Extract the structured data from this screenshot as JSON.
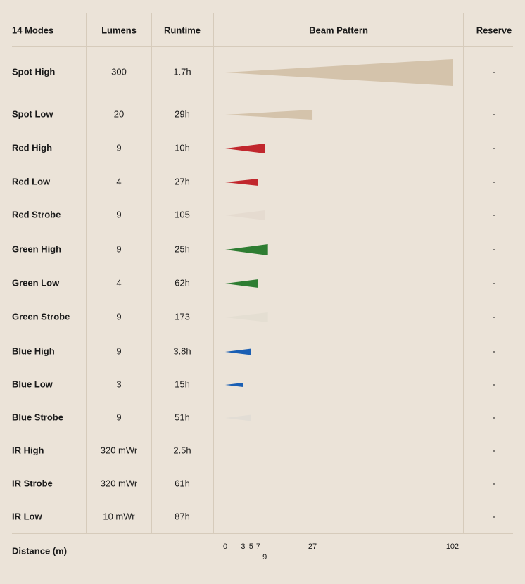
{
  "table": {
    "headers": [
      "14 Modes",
      "Lumens",
      "Runtime",
      "Beam Pattern",
      "Reserve"
    ],
    "rows": [
      {
        "mode": "Spot High",
        "lumens": "300",
        "runtime": "1.7h",
        "beam": 102,
        "color": "#d4c3ab",
        "reserve": "-"
      },
      {
        "mode": "Spot Low",
        "lumens": "20",
        "runtime": "29h",
        "beam": 27,
        "color": "#d4c3ab",
        "reserve": "-"
      },
      {
        "mode": "Red High",
        "lumens": "9",
        "runtime": "10h",
        "beam": 9,
        "color": "#c1272d",
        "reserve": "-"
      },
      {
        "mode": "Red Low",
        "lumens": "4",
        "runtime": "27h",
        "beam": 7,
        "color": "#c1272d",
        "reserve": "-"
      },
      {
        "mode": "Red Strobe",
        "lumens": "9",
        "runtime": "105",
        "beam": 9,
        "color": "#e5dbd0",
        "reserve": "-"
      },
      {
        "mode": "Green High",
        "lumens": "9",
        "runtime": "25h",
        "beam": 10,
        "color": "#2e7d32",
        "reserve": "-"
      },
      {
        "mode": "Green Low",
        "lumens": "4",
        "runtime": "62h",
        "beam": 7,
        "color": "#2e7d32",
        "reserve": "-"
      },
      {
        "mode": "Green Strobe",
        "lumens": "9",
        "runtime": "173",
        "beam": 10,
        "color": "#e4ded2",
        "reserve": "-"
      },
      {
        "mode": "Blue High",
        "lumens": "9",
        "runtime": "3.8h",
        "beam": 5,
        "color": "#1a5fb4",
        "reserve": "-"
      },
      {
        "mode": "Blue Low",
        "lumens": "3",
        "runtime": "15h",
        "beam": 3,
        "color": "#1a5fb4",
        "reserve": "-"
      },
      {
        "mode": "Blue Strobe",
        "lumens": "9",
        "runtime": "51h",
        "beam": 5,
        "color": "#e2ddd5",
        "reserve": "-"
      },
      {
        "mode": "IR High",
        "lumens": "320 mWr",
        "runtime": "2.5h",
        "beam": null,
        "reserve": "-"
      },
      {
        "mode": "IR Strobe",
        "lumens": "320 mWr",
        "runtime": "61h",
        "beam": null,
        "reserve": "-"
      },
      {
        "mode": "IR Low",
        "lumens": "10 mWr",
        "runtime": "87h",
        "beam": null,
        "reserve": "-"
      }
    ],
    "footer": {
      "label": "Distance (m)",
      "ticks": [
        0,
        3,
        5,
        7,
        9,
        27,
        102
      ]
    }
  }
}
